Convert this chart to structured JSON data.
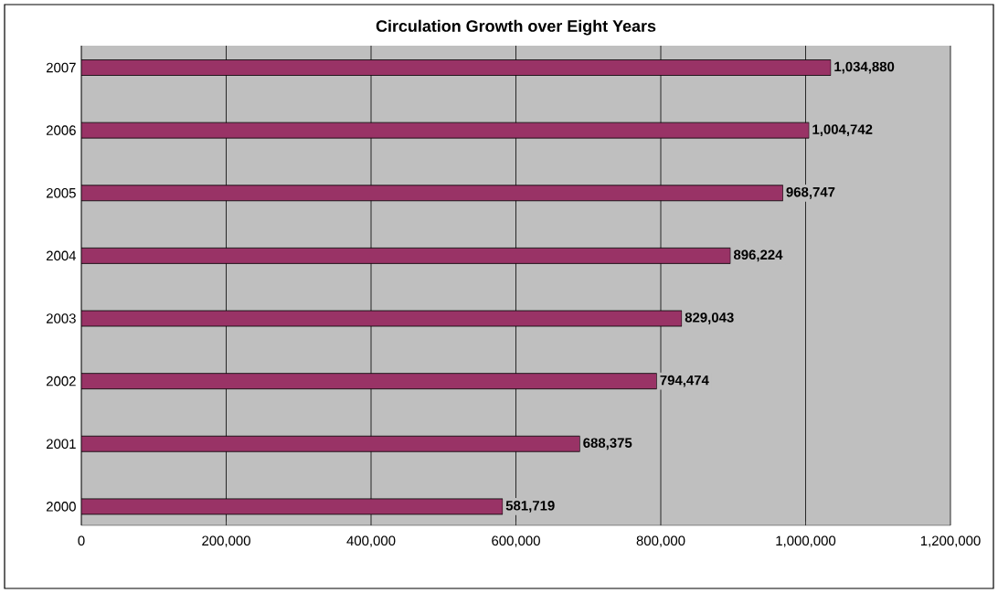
{
  "chart_data": {
    "type": "bar",
    "orientation": "horizontal",
    "title": "Circulation Growth over Eight Years",
    "categories": [
      "2007",
      "2006",
      "2005",
      "2004",
      "2003",
      "2002",
      "2001",
      "2000"
    ],
    "values": [
      1034880,
      1004742,
      968747,
      896224,
      829043,
      794474,
      688375,
      581719
    ],
    "value_labels": [
      "1,034,880",
      "1,004,742",
      "968,747",
      "896,224",
      "829,043",
      "794,474",
      "688,375",
      "581,719"
    ],
    "color": "#993366",
    "xlim": [
      0,
      1200000
    ],
    "xticks": [
      0,
      {
        "value": 200000,
        "label": "200,000"
      },
      {
        "value": 400000,
        "label": "400,000"
      },
      {
        "value": 600000,
        "label": "600,000"
      },
      {
        "value": 800000,
        "label": "800,000"
      },
      {
        "value": 1000000,
        "label": "1,000,000"
      },
      {
        "value": 1200000,
        "label": "1,200,000"
      }
    ],
    "grid": "x"
  }
}
